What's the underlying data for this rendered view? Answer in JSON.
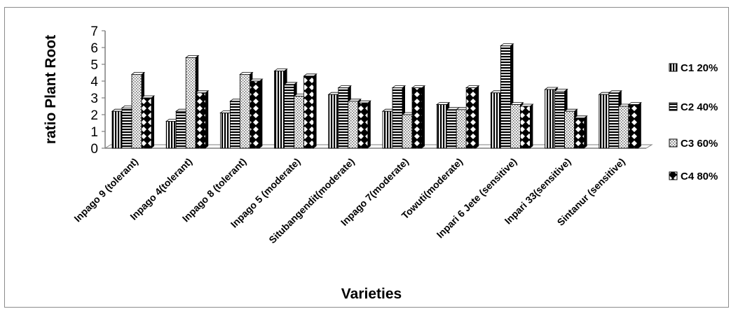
{
  "chart_data": {
    "type": "bar",
    "title": "",
    "xlabel": "Varieties",
    "ylabel": "ratio Plant  Root",
    "ylim": [
      0,
      7
    ],
    "yticks": [
      0,
      1,
      2,
      3,
      4,
      5,
      6,
      7
    ],
    "grid": false,
    "legend_position": "right",
    "categories": [
      "Inpago 9 (tolerant)",
      "Inpago 4(tolerant)",
      "Inpago 8 (tolerant)",
      "Inpago 5 (moderate)",
      "Situbangendit(moderate)",
      "Inpago 7(moderate)",
      "Towuti(moderate)",
      "Inpari 6 Jete (sensitive)",
      "Inpari 33(sensitive)",
      "Sintanur (sensitive)"
    ],
    "series": [
      {
        "name": "C1 20%",
        "pattern": "vertical-lines",
        "values": [
          2.2,
          1.6,
          2.1,
          4.6,
          3.2,
          2.2,
          2.6,
          3.3,
          3.5,
          3.2
        ]
      },
      {
        "name": "C2 40%",
        "pattern": "horizontal-lines",
        "values": [
          2.4,
          2.2,
          2.8,
          3.8,
          3.6,
          3.6,
          2.3,
          6.1,
          3.4,
          3.3
        ]
      },
      {
        "name": "C3 60%",
        "pattern": "dots",
        "values": [
          4.4,
          5.4,
          4.4,
          3.1,
          2.8,
          2.0,
          2.3,
          2.6,
          2.2,
          2.5
        ]
      },
      {
        "name": "C4 80%",
        "pattern": "diamonds",
        "values": [
          3.0,
          3.3,
          4.0,
          4.3,
          2.7,
          3.6,
          3.6,
          2.5,
          1.8,
          2.6
        ]
      }
    ],
    "colors": {
      "ink": "#000000",
      "paper": "#ffffff",
      "frame": "#8c8c8c",
      "axis": "#7f7f7f"
    }
  }
}
